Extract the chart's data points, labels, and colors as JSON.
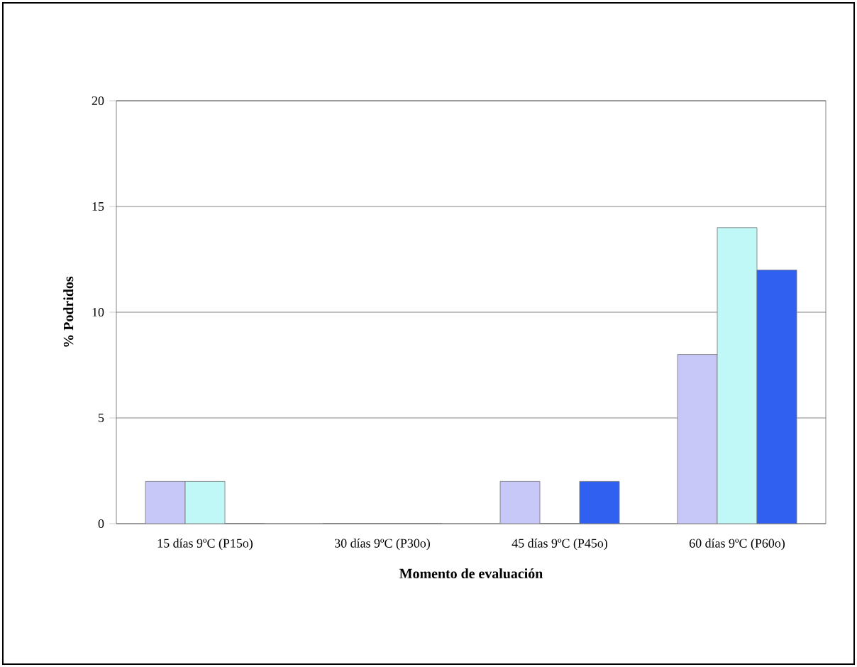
{
  "chart_data": {
    "type": "bar",
    "xlabel": "Momento de evaluación",
    "ylabel": "% Podridos",
    "categories": [
      "15 días 9ºC (P15o)",
      "30 días 9ºC (P30o)",
      "45 días 9ºC (P45o)",
      "60 días 9ºC (P60o)"
    ],
    "series": [
      {
        "color": "#c8c8f8",
        "values": [
          2,
          0,
          2,
          8
        ]
      },
      {
        "color": "#c0f8f8",
        "values": [
          2,
          0,
          0,
          14
        ]
      },
      {
        "color": "#3060f0",
        "values": [
          0,
          0,
          2,
          12
        ]
      }
    ],
    "ylim": [
      0,
      20
    ],
    "yticks": [
      0,
      5,
      10,
      15,
      20
    ],
    "grid": "y"
  }
}
